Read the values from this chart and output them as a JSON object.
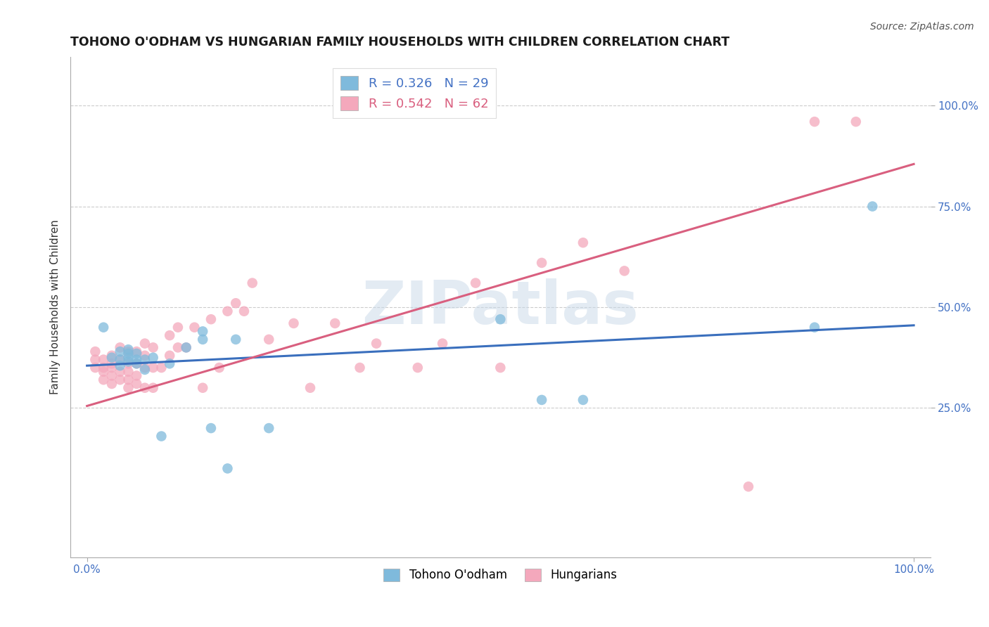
{
  "title": "TOHONO O'ODHAM VS HUNGARIAN FAMILY HOUSEHOLDS WITH CHILDREN CORRELATION CHART",
  "source": "Source: ZipAtlas.com",
  "ylabel": "Family Households with Children",
  "xlim": [
    -0.02,
    1.02
  ],
  "ylim": [
    -0.12,
    1.12
  ],
  "yticks": [
    0.25,
    0.5,
    0.75,
    1.0
  ],
  "ytick_labels": [
    "25.0%",
    "50.0%",
    "75.0%",
    "100.0%"
  ],
  "xticks": [
    0.0,
    1.0
  ],
  "xtick_labels": [
    "0.0%",
    "100.0%"
  ],
  "legend1_label": "R = 0.326   N = 29",
  "legend2_label": "R = 0.542   N = 62",
  "legend_xlabel": "Tohono O'odham",
  "legend_ylabel": "Hungarians",
  "blue_color": "#7fbadc",
  "pink_color": "#f4a8bc",
  "blue_line_color": "#3a6fbd",
  "pink_line_color": "#d95f7f",
  "background_color": "#ffffff",
  "grid_color": "#cccccc",
  "title_fontsize": 12.5,
  "label_fontsize": 11,
  "tick_fontsize": 11,
  "source_fontsize": 10,
  "tohono_x": [
    0.02,
    0.03,
    0.04,
    0.04,
    0.04,
    0.05,
    0.05,
    0.05,
    0.05,
    0.06,
    0.06,
    0.06,
    0.07,
    0.07,
    0.08,
    0.09,
    0.1,
    0.12,
    0.14,
    0.14,
    0.15,
    0.17,
    0.18,
    0.22,
    0.5,
    0.55,
    0.6,
    0.88,
    0.95
  ],
  "tohono_y": [
    0.45,
    0.375,
    0.355,
    0.37,
    0.39,
    0.365,
    0.375,
    0.385,
    0.395,
    0.36,
    0.37,
    0.385,
    0.345,
    0.37,
    0.375,
    0.18,
    0.36,
    0.4,
    0.42,
    0.44,
    0.2,
    0.1,
    0.42,
    0.2,
    0.47,
    0.27,
    0.27,
    0.45,
    0.75
  ],
  "hungarian_x": [
    0.01,
    0.01,
    0.01,
    0.02,
    0.02,
    0.02,
    0.02,
    0.03,
    0.03,
    0.03,
    0.03,
    0.03,
    0.04,
    0.04,
    0.04,
    0.04,
    0.05,
    0.05,
    0.05,
    0.05,
    0.05,
    0.06,
    0.06,
    0.06,
    0.06,
    0.07,
    0.07,
    0.07,
    0.07,
    0.08,
    0.08,
    0.08,
    0.09,
    0.1,
    0.1,
    0.11,
    0.11,
    0.12,
    0.13,
    0.14,
    0.15,
    0.16,
    0.17,
    0.18,
    0.19,
    0.2,
    0.22,
    0.25,
    0.27,
    0.3,
    0.33,
    0.35,
    0.4,
    0.43,
    0.47,
    0.5,
    0.55,
    0.6,
    0.65,
    0.8,
    0.88,
    0.93
  ],
  "hungarian_y": [
    0.35,
    0.37,
    0.39,
    0.32,
    0.34,
    0.35,
    0.37,
    0.31,
    0.33,
    0.35,
    0.36,
    0.38,
    0.32,
    0.34,
    0.37,
    0.4,
    0.3,
    0.32,
    0.34,
    0.36,
    0.39,
    0.31,
    0.33,
    0.36,
    0.39,
    0.3,
    0.35,
    0.38,
    0.41,
    0.3,
    0.35,
    0.4,
    0.35,
    0.38,
    0.43,
    0.4,
    0.45,
    0.4,
    0.45,
    0.3,
    0.47,
    0.35,
    0.49,
    0.51,
    0.49,
    0.56,
    0.42,
    0.46,
    0.3,
    0.46,
    0.35,
    0.41,
    0.35,
    0.41,
    0.56,
    0.35,
    0.61,
    0.66,
    0.59,
    0.055,
    0.96,
    0.96
  ],
  "blue_line_start_y": 0.355,
  "blue_line_end_y": 0.455,
  "pink_line_start_y": 0.255,
  "pink_line_end_y": 0.855
}
